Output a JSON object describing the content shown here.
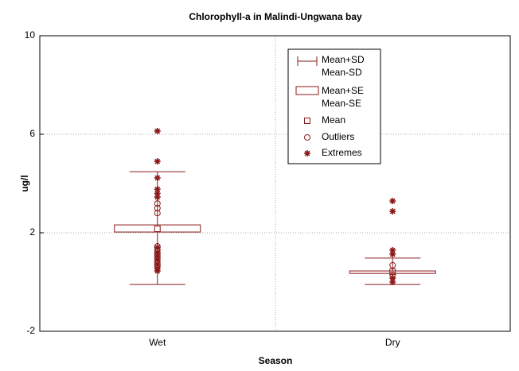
{
  "chart_data": {
    "type": "box",
    "title": "Chlorophyll-a in Malindi-Ungwana bay",
    "x_label": "Season",
    "y_label": "ug/l",
    "categories": [
      "Wet",
      "Dry"
    ],
    "mean": [
      2.16,
      0.42
    ],
    "mean_plus_se": [
      2.32,
      0.45
    ],
    "mean_minus_se": [
      2.03,
      0.35
    ],
    "mean_plus_sd": [
      4.48,
      0.97
    ],
    "mean_minus_sd": [
      -0.1,
      -0.1
    ],
    "outliers": [
      [
        3.19,
        3.0,
        2.8,
        1.45,
        1.3,
        1.13,
        0.97,
        0.8,
        0.65
      ],
      [
        0.68,
        0.29
      ]
    ],
    "extremes": [
      [
        6.13,
        4.9,
        4.23,
        3.77,
        3.6,
        3.45,
        1.4,
        1.2,
        1.05,
        0.9,
        0.72,
        0.55,
        0.45
      ],
      [
        3.29,
        2.87,
        1.29,
        1.13,
        0.16,
        0.0
      ]
    ],
    "color": "#8b1a1a",
    "ylim": [
      -2,
      10
    ],
    "yticks": [
      -2,
      2,
      6,
      10
    ],
    "grid": true,
    "legend": [
      "Mean+SD",
      "Mean-SD",
      "Mean+SE",
      "Mean-SE",
      "Mean",
      "Outliers",
      "Extremes"
    ],
    "legend_position": "top"
  }
}
